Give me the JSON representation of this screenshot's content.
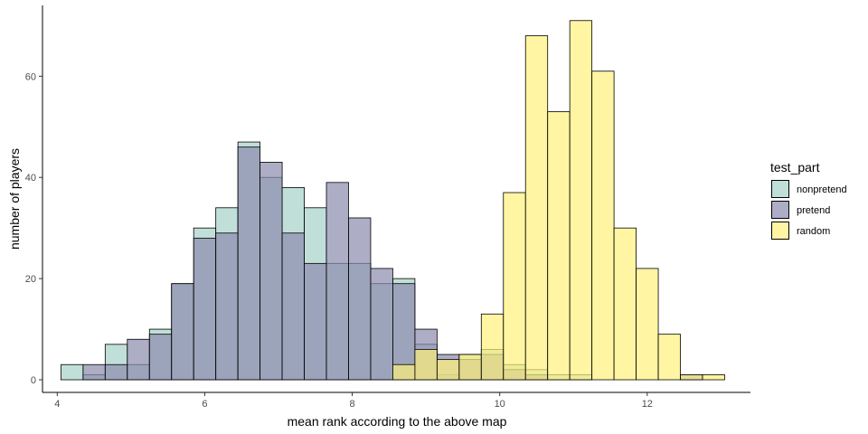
{
  "chart_data": {
    "type": "bar",
    "subtype": "overlapping-histogram",
    "title": "",
    "xlabel": "mean rank according to the above map",
    "ylabel": "number of players",
    "xlim": [
      3.8,
      13.4
    ],
    "ylim": [
      -2.5,
      74
    ],
    "x_ticks": [
      4,
      6,
      8,
      10,
      12
    ],
    "y_ticks": [
      0,
      20,
      40,
      60
    ],
    "grid": false,
    "bin_width": 0.3,
    "bin_starts": [
      4.05,
      4.35,
      4.65,
      4.95,
      5.25,
      5.55,
      5.85,
      6.15,
      6.45,
      6.75,
      7.05,
      7.35,
      7.65,
      7.95,
      8.25,
      8.55,
      8.85,
      9.15,
      9.45,
      9.75,
      10.05,
      10.35,
      10.65,
      10.95,
      11.25,
      11.55,
      11.85,
      12.15,
      12.45,
      12.75
    ],
    "legend": {
      "title": "test_part",
      "position": "right"
    },
    "series": [
      {
        "name": "nonpretend",
        "color": "#a6d2c9",
        "values": [
          3,
          1,
          7,
          3,
          10,
          19,
          30,
          34,
          47,
          40,
          38,
          34,
          23,
          23,
          19,
          20,
          7,
          1,
          5,
          6,
          3,
          2,
          1,
          1,
          0,
          0,
          0,
          0,
          0,
          0
        ]
      },
      {
        "name": "pretend",
        "color": "#8c8aae",
        "values": [
          0,
          3,
          3,
          8,
          9,
          19,
          28,
          29,
          46,
          43,
          29,
          23,
          39,
          32,
          22,
          19,
          10,
          5,
          4,
          5,
          2,
          1,
          0,
          0,
          0,
          0,
          0,
          0,
          1,
          0
        ]
      },
      {
        "name": "random",
        "color": "#fff17a",
        "values": [
          0,
          0,
          0,
          0,
          0,
          0,
          0,
          0,
          0,
          0,
          0,
          0,
          0,
          0,
          0,
          3,
          6,
          4,
          5,
          13,
          37,
          68,
          53,
          71,
          61,
          30,
          22,
          9,
          1,
          1
        ]
      }
    ]
  }
}
